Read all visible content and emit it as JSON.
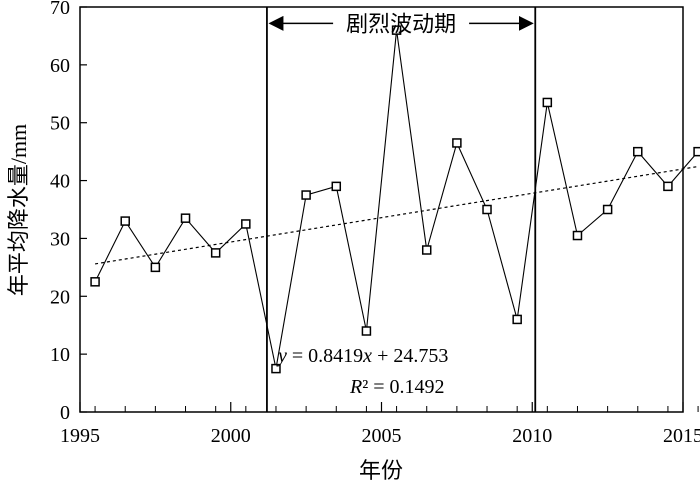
{
  "chart_data": {
    "type": "line",
    "title": "",
    "xlabel": "年份",
    "ylabel": "年平均降水量/mm",
    "xlim": [
      1995,
      2015
    ],
    "ylim": [
      0,
      70
    ],
    "xticks": [
      1995,
      2000,
      2005,
      2010,
      2015
    ],
    "yticks": [
      0,
      10,
      20,
      30,
      40,
      50,
      60,
      70
    ],
    "grid": false,
    "series": [
      {
        "x": [
          1995.5,
          1996.5,
          1997.5,
          1998.5,
          1999.5,
          2000.5,
          2001.5,
          2002.5,
          2003.5,
          2004.5,
          2005.5,
          2006.5,
          2007.5,
          2008.5,
          2009.5,
          2010.5,
          2011.5,
          2012.5,
          2013.5,
          2014.5,
          2015.5
        ],
        "values": [
          22.5,
          33,
          25,
          33.5,
          27.5,
          32.5,
          7.5,
          37.5,
          39,
          14,
          66,
          28,
          46.5,
          35,
          16,
          53.5,
          30.5,
          35,
          45,
          39,
          45
        ],
        "marker": "square",
        "color": "#000000"
      }
    ],
    "trendline": {
      "slope": 0.8419,
      "intercept": 24.753,
      "style": "dashed",
      "equation_text": "y = 0.8419x + 24.753",
      "r2_text": "R² = 0.1492"
    },
    "vertical_lines": [
      2001.2,
      2010.1
    ],
    "annotation": {
      "label": "剧烈波动期",
      "from": 2001.2,
      "to": 2010.1,
      "y": 67
    }
  }
}
